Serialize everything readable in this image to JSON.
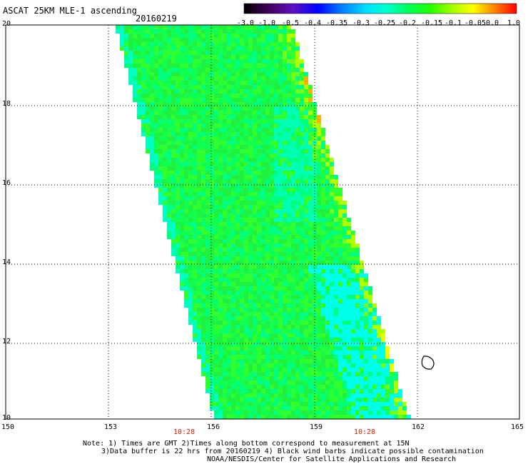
{
  "header": {
    "title": "ASCAT 25KM MLE-1 ascending",
    "date": "20160219"
  },
  "colorbar": {
    "labels": [
      "-3.0",
      "-1.0",
      "-0.5",
      "-0.4",
      "-0.35",
      "-0.3",
      "-0.25",
      "-0.2",
      "-0.15",
      "-0.1",
      "-0.05",
      "0.0",
      "1.0"
    ],
    "colors": [
      "#000000",
      "#5a0090",
      "#0000ff",
      "#0080ff",
      "#00d0ff",
      "#00ffe0",
      "#00ff80",
      "#00ff00",
      "#a0ff00",
      "#ffff00",
      "#ff8000",
      "#ff0000"
    ]
  },
  "axes": {
    "x_ticks": [
      "150",
      "153",
      "156",
      "159",
      "162",
      "165"
    ],
    "y_ticks": [
      "20",
      "18",
      "16",
      "14",
      "12",
      "10"
    ],
    "times": [
      "10:28",
      "10:28"
    ]
  },
  "footer": {
    "line1": "Note: 1) Times are GMT 2)Times along bottom correspond to measurement at 15N",
    "line2": "3)Data buffer is 22 hrs from 20160219 4) Black wind barbs indicate possible contamination",
    "line3": "NOAA/NESDIS/Center for Satellite Applications and Research"
  }
}
